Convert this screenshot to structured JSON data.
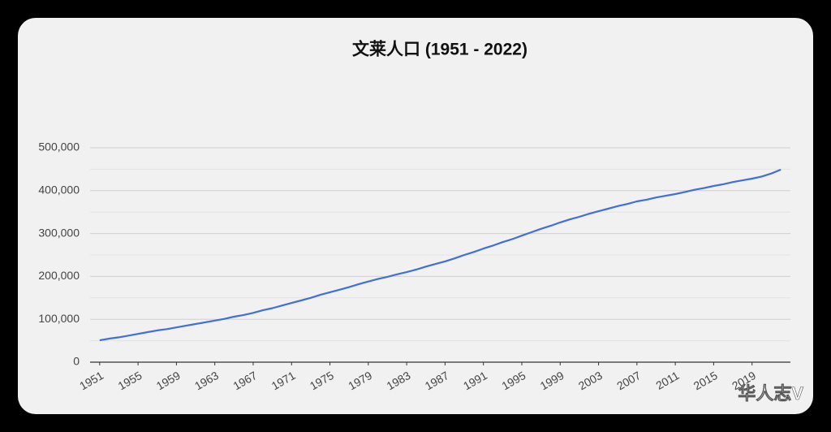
{
  "chart_data": {
    "type": "line",
    "title": "文莱人口 (1951 - 2022)",
    "x": [
      1951,
      1952,
      1953,
      1954,
      1955,
      1956,
      1957,
      1958,
      1959,
      1960,
      1961,
      1962,
      1963,
      1964,
      1965,
      1966,
      1967,
      1968,
      1969,
      1970,
      1971,
      1972,
      1973,
      1974,
      1975,
      1976,
      1977,
      1978,
      1979,
      1980,
      1981,
      1982,
      1983,
      1984,
      1985,
      1986,
      1987,
      1988,
      1989,
      1990,
      1991,
      1992,
      1993,
      1994,
      1995,
      1996,
      1997,
      1998,
      1999,
      2000,
      2001,
      2002,
      2003,
      2004,
      2005,
      2006,
      2007,
      2008,
      2009,
      2010,
      2011,
      2012,
      2013,
      2014,
      2015,
      2016,
      2017,
      2018,
      2019,
      2020,
      2021,
      2022
    ],
    "values": [
      51000,
      55000,
      58000,
      62000,
      66000,
      70000,
      74000,
      77000,
      81000,
      85000,
      89000,
      93000,
      97000,
      101000,
      106000,
      110000,
      115000,
      121000,
      126000,
      132000,
      138000,
      144000,
      150000,
      157000,
      163000,
      169000,
      175000,
      182000,
      188000,
      194000,
      199000,
      205000,
      210000,
      216000,
      223000,
      229000,
      235000,
      242000,
      250000,
      257000,
      265000,
      272000,
      280000,
      287000,
      295000,
      303000,
      311000,
      318000,
      326000,
      333000,
      339000,
      346000,
      352000,
      358000,
      364000,
      369000,
      375000,
      379000,
      384000,
      388000,
      392000,
      397000,
      402000,
      406000,
      411000,
      415000,
      420000,
      424000,
      428000,
      433000,
      440000,
      449000
    ],
    "color": "#3f6fd8",
    "xlim": [
      1950,
      2023
    ],
    "xticks": [
      1951,
      1955,
      1959,
      1963,
      1967,
      1971,
      1975,
      1979,
      1983,
      1987,
      1991,
      1995,
      1999,
      2003,
      2007,
      2011,
      2015,
      2019
    ],
    "ylim": [
      0,
      500000
    ],
    "yticks": [
      0,
      {
        "value": 100000,
        "label": "100,000"
      },
      {
        "value": 200000,
        "label": "200,000"
      },
      {
        "value": 300000,
        "label": "300,000"
      },
      {
        "value": 400000,
        "label": "400,000"
      },
      {
        "value": 500000,
        "label": "500,000"
      }
    ],
    "minor_yticks": [
      50000,
      150000,
      250000,
      350000,
      450000
    ],
    "grid": true,
    "watermark": "华人志V"
  }
}
